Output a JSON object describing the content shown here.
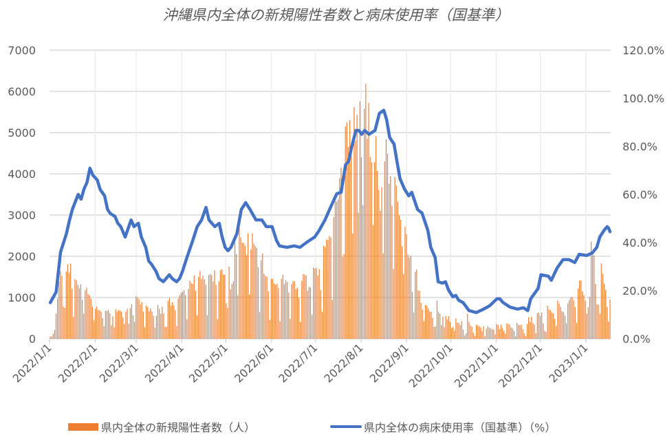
{
  "chart_data": {
    "type": "bar+line",
    "title": "沖縄県内全体の新規陽性者数と病床使用率（国基準）",
    "x_range": [
      "2022/1/1",
      "2023/1/17"
    ],
    "x_tick_labels": [
      "2022/1/1",
      "2022/2/1",
      "2022/3/1",
      "2022/4/1",
      "2022/5/1",
      "2022/6/1",
      "2022/7/1",
      "2022/8/1",
      "2022/9/1",
      "2022/10/1",
      "2022/11/1",
      "2022/12/1",
      "2023/1/1"
    ],
    "y_left": {
      "min": 0,
      "max": 7000,
      "step": 1000,
      "tick_labels": [
        "0",
        "1000",
        "2000",
        "3000",
        "4000",
        "5000",
        "6000",
        "7000"
      ]
    },
    "y_right": {
      "min": 0,
      "max": 120,
      "step": 20,
      "tick_labels": [
        "0.0%",
        "20.0%",
        "40.0%",
        "60.0%",
        "80.0%",
        "100.0%",
        "120.0%"
      ]
    },
    "grid": true,
    "legend_position": "bottom",
    "series": [
      {
        "name": "県内全体の新規陽性者数（人）",
        "type": "bar",
        "axis": "left",
        "color": "#ED7D31",
        "daily_values": [
          55,
          55,
          122,
          211,
          611,
          972,
          1389,
          1639,
          1528,
          778,
          750,
          1628,
          1806,
          1594,
          1822,
          1211,
          528,
          1444,
          1417,
          1306,
          1222,
          1317,
          944,
          611,
          1167,
          1239,
          1083,
          1056,
          972,
          778,
          444,
          722,
          778,
          694,
          694,
          656,
          500,
          306,
          678,
          678,
          694,
          622,
          322,
          544,
          278,
          711,
          656,
          694,
          678,
          656,
          517,
          361,
          656,
          722,
          361,
          739,
          833,
          567,
          406,
          1028,
          1000,
          956,
          833,
          889,
          656,
          278,
          806,
          767,
          667,
          739,
          656,
          556,
          267,
          556,
          822,
          722,
          600,
          778,
          611,
          289,
          289,
          917,
          989,
          806,
          889,
          806,
          694,
          306,
          972,
          1056,
          1111,
          1139,
          1178,
          1056,
          472,
          1206,
          1406,
          1344,
          1333,
          1528,
          1167,
          567,
          1500,
          1639,
          1444,
          1528,
          1444,
          1306,
          567,
          1544,
          1567,
          1544,
          1389,
          1656,
          1306,
          472,
          1389,
          1656,
          1683,
          1556,
          1556,
          861,
          750,
          1750,
          1194,
          1333,
          1389,
          2333,
          2056,
          1056,
          2694,
          2456,
          2333,
          2322,
          2250,
          2028,
          2556,
          1072,
          2167,
          2556,
          2306,
          2244,
          2200,
          1733,
          650,
          1900,
          2067,
          1578,
          1522,
          1506,
          1150,
          456,
          1450,
          1450,
          1344,
          1311,
          1328,
          1233,
          422,
          1450,
          1550,
          1328,
          1422,
          1372,
          1117,
          483,
          1328,
          1400,
          1394,
          1200,
          1233,
          994,
          400,
          1400,
          1567,
          1561,
          1533,
          1161,
          1256,
          1244,
          578,
          1728,
          1700,
          1717,
          1533,
          1689,
          1178,
          650,
          2256,
          2228,
          2400,
          2400,
          2494,
          2456,
          939,
          2950,
          3339,
          3328,
          3383,
          3894,
          4150,
          1983,
          2050,
          5150,
          5244,
          4650,
          5300,
          4661,
          2550,
          5617,
          4811,
          5428,
          3061,
          5761,
          4400,
          3244,
          5578,
          6183,
          4856,
          5717,
          4411,
          4283,
          2761,
          4283,
          4911,
          4067,
          3606,
          3106,
          3672,
          2067,
          4300,
          4839,
          4494,
          3761,
          3939,
          3228,
          1689,
          3922,
          3717,
          3317,
          2994,
          2883,
          2244,
          1567,
          2717,
          2539,
          2039,
          1967,
          2011,
          1133,
          633,
          1617,
          1678,
          1172,
          1161,
          867,
          700,
          428,
          817,
          800,
          728,
          661,
          650,
          506,
          283,
          300,
          922,
          650,
          606,
          328,
          533,
          272,
          550,
          467,
          550,
          411,
          261,
          283,
          189,
          494,
          383,
          383,
          328,
          428,
          217,
          78,
          133,
          606,
          400,
          328,
          289,
          150,
          67,
          339,
          328,
          300,
          272,
          189,
          300,
          61,
          244,
          300,
          261,
          244,
          228,
          217,
          106,
          356,
          339,
          233,
          339,
          261,
          189,
          117,
          372,
          356,
          344,
          272,
          244,
          189,
          61,
          383,
          339,
          328,
          339,
          228,
          133,
          61,
          356,
          522,
          411,
          533,
          383,
          339,
          133,
          622,
          633,
          561,
          633,
          372,
          189,
          161,
          800,
          706,
          689,
          633,
          606,
          478,
          300,
          922,
          856,
          772,
          661,
          644,
          561,
          372,
          856,
          939,
          1006,
          1011,
          928,
          772,
          383,
          1217,
          1411,
          1411,
          1150,
          1061,
          922,
          606,
          761,
          1011,
          2356,
          2050,
          2022,
          1328,
          839,
          828,
          606,
          1828,
          1578,
          1328,
          1189,
          772,
          411,
          950
        ]
      },
      {
        "name": "県内全体の病床使用率（国基準）（%）",
        "type": "line",
        "axis": "right",
        "color": "#4472C4",
        "points": [
          [
            "2022-01-01",
            15
          ],
          [
            "2022-01-05",
            19.4
          ],
          [
            "2022-01-08",
            36
          ],
          [
            "2022-01-12",
            43.7
          ],
          [
            "2022-01-14",
            49
          ],
          [
            "2022-01-16",
            53.7
          ],
          [
            "2022-01-20",
            60
          ],
          [
            "2022-01-22",
            58
          ],
          [
            "2022-01-24",
            62.3
          ],
          [
            "2022-01-26",
            65
          ],
          [
            "2022-01-28",
            70.9
          ],
          [
            "2022-01-30",
            68
          ],
          [
            "2022-02-02",
            66
          ],
          [
            "2022-02-04",
            62
          ],
          [
            "2022-02-07",
            59.4
          ],
          [
            "2022-02-09",
            53.7
          ],
          [
            "2022-02-11",
            52
          ],
          [
            "2022-02-14",
            50.9
          ],
          [
            "2022-02-16",
            48
          ],
          [
            "2022-02-18",
            46.6
          ],
          [
            "2022-02-21",
            42.3
          ],
          [
            "2022-02-25",
            49.4
          ],
          [
            "2022-02-27",
            46.6
          ],
          [
            "2022-03-02",
            48
          ],
          [
            "2022-03-04",
            42.3
          ],
          [
            "2022-03-07",
            38
          ],
          [
            "2022-03-09",
            32.3
          ],
          [
            "2022-03-11",
            30.9
          ],
          [
            "2022-03-14",
            28
          ],
          [
            "2022-03-16",
            25
          ],
          [
            "2022-03-19",
            23.7
          ],
          [
            "2022-03-23",
            26.6
          ],
          [
            "2022-03-25",
            25
          ],
          [
            "2022-03-28",
            23.7
          ],
          [
            "2022-03-30",
            25
          ],
          [
            "2022-04-01",
            28
          ],
          [
            "2022-04-04",
            33.7
          ],
          [
            "2022-04-08",
            40.9
          ],
          [
            "2022-04-11",
            46.6
          ],
          [
            "2022-04-14",
            49.4
          ],
          [
            "2022-04-17",
            54.6
          ],
          [
            "2022-04-19",
            49.4
          ],
          [
            "2022-04-23",
            46.6
          ],
          [
            "2022-04-26",
            48
          ],
          [
            "2022-04-28",
            42.3
          ],
          [
            "2022-04-30",
            38
          ],
          [
            "2022-05-02",
            36.6
          ],
          [
            "2022-05-04",
            38
          ],
          [
            "2022-05-08",
            43.7
          ],
          [
            "2022-05-11",
            53.7
          ],
          [
            "2022-05-14",
            56.6
          ],
          [
            "2022-05-17",
            53.7
          ],
          [
            "2022-05-21",
            49.4
          ],
          [
            "2022-05-25",
            49.4
          ],
          [
            "2022-05-28",
            46.6
          ],
          [
            "2022-06-01",
            46.6
          ],
          [
            "2022-06-04",
            40.9
          ],
          [
            "2022-06-06",
            38.6
          ],
          [
            "2022-06-11",
            38
          ],
          [
            "2022-06-16",
            38.6
          ],
          [
            "2022-06-20",
            38
          ],
          [
            "2022-06-25",
            40.3
          ],
          [
            "2022-06-30",
            42.3
          ],
          [
            "2022-07-03",
            45
          ],
          [
            "2022-07-07",
            49.4
          ],
          [
            "2022-07-11",
            55
          ],
          [
            "2022-07-15",
            60.3
          ],
          [
            "2022-07-18",
            60.9
          ],
          [
            "2022-07-19",
            65
          ],
          [
            "2022-07-21",
            72.3
          ],
          [
            "2022-07-23",
            73.7
          ],
          [
            "2022-07-25",
            79.4
          ],
          [
            "2022-07-28",
            86.6
          ],
          [
            "2022-07-30",
            86.6
          ],
          [
            "2022-08-01",
            85
          ],
          [
            "2022-08-03",
            86.6
          ],
          [
            "2022-08-06",
            85
          ],
          [
            "2022-08-10",
            86.6
          ],
          [
            "2022-08-13",
            93.7
          ],
          [
            "2022-08-16",
            95
          ],
          [
            "2022-08-18",
            91
          ],
          [
            "2022-08-20",
            83.7
          ],
          [
            "2022-08-23",
            80.9
          ],
          [
            "2022-08-25",
            73.7
          ],
          [
            "2022-08-27",
            66.6
          ],
          [
            "2022-08-30",
            62.3
          ],
          [
            "2022-09-02",
            59.4
          ],
          [
            "2022-09-04",
            60.9
          ],
          [
            "2022-09-08",
            53.7
          ],
          [
            "2022-09-11",
            52.3
          ],
          [
            "2022-09-15",
            45
          ],
          [
            "2022-09-17",
            38
          ],
          [
            "2022-09-20",
            33.7
          ],
          [
            "2022-09-22",
            23.7
          ],
          [
            "2022-09-25",
            23.1
          ],
          [
            "2022-09-27",
            23.7
          ],
          [
            "2022-09-29",
            20.3
          ],
          [
            "2022-10-02",
            17.4
          ],
          [
            "2022-10-04",
            18
          ],
          [
            "2022-10-06",
            16
          ],
          [
            "2022-10-09",
            15
          ],
          [
            "2022-10-13",
            11.7
          ],
          [
            "2022-10-18",
            10.9
          ],
          [
            "2022-10-23",
            12.3
          ],
          [
            "2022-10-27",
            13.7
          ],
          [
            "2022-11-01",
            16.6
          ],
          [
            "2022-11-03",
            16.6
          ],
          [
            "2022-11-05",
            15.1
          ],
          [
            "2022-11-10",
            13.1
          ],
          [
            "2022-11-15",
            12.3
          ],
          [
            "2022-11-19",
            12.9
          ],
          [
            "2022-11-22",
            11.7
          ],
          [
            "2022-11-24",
            16.6
          ],
          [
            "2022-11-29",
            20.9
          ],
          [
            "2022-12-01",
            26.6
          ],
          [
            "2022-12-06",
            26
          ],
          [
            "2022-12-08",
            24.3
          ],
          [
            "2022-12-12",
            29.4
          ],
          [
            "2022-12-16",
            32.9
          ],
          [
            "2022-12-20",
            32.9
          ],
          [
            "2022-12-24",
            31.7
          ],
          [
            "2022-12-27",
            35.1
          ],
          [
            "2023-01-01",
            34.6
          ],
          [
            "2023-01-05",
            35.7
          ],
          [
            "2023-01-08",
            38
          ],
          [
            "2023-01-10",
            42.3
          ],
          [
            "2023-01-13",
            45.1
          ],
          [
            "2023-01-15",
            46.6
          ],
          [
            "2023-01-16",
            46
          ],
          [
            "2023-01-17",
            44.5
          ]
        ]
      }
    ]
  }
}
